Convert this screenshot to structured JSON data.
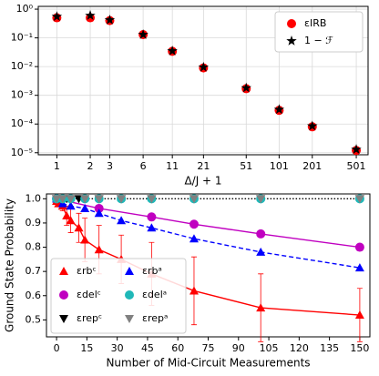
{
  "chart_data": [
    {
      "type": "scatter",
      "xlabel": "Δ/J + 1",
      "xlog": true,
      "ylog": true,
      "grid": true,
      "legend": "upper right",
      "x": [
        1,
        2,
        3,
        6,
        11,
        21,
        51,
        101,
        201,
        501
      ],
      "xlim": [
        0.68,
        640
      ],
      "xticks": [
        1,
        2,
        3,
        6,
        11,
        21,
        51,
        101,
        201,
        501
      ],
      "ylim": [
        8.5e-06,
        1.25
      ],
      "yticks": [
        {
          "value": 1e-05,
          "label": "10⁻⁵"
        },
        {
          "value": 0.0001,
          "label": "10⁻⁴"
        },
        {
          "value": 0.001,
          "label": "10⁻³"
        },
        {
          "value": 0.01,
          "label": "10⁻²"
        },
        {
          "value": 0.1,
          "label": "10⁻¹"
        },
        {
          "value": 1,
          "label": "10⁰"
        }
      ],
      "series": [
        {
          "name": "εIRB",
          "color": "#ff0000",
          "marker": "circle",
          "values": [
            0.5,
            0.5,
            0.4,
            0.13,
            0.034,
            0.009,
            0.0017,
            0.0003,
            8e-05,
            1.2e-05
          ]
        },
        {
          "name": "1 − ℱ",
          "color": "#000000",
          "marker": "star",
          "values": [
            0.55,
            0.6,
            0.42,
            0.13,
            0.035,
            0.0095,
            0.0018,
            0.00032,
            8.5e-05,
            1.3e-05
          ]
        }
      ]
    },
    {
      "type": "scatter",
      "xlabel": "Number of Mid-Circuit Measurements",
      "ylabel": "Ground State Probability",
      "grid": false,
      "legend": "lower left",
      "xlim": [
        -5,
        155
      ],
      "xticks": [
        0,
        15,
        30,
        45,
        60,
        75,
        90,
        105,
        120,
        135,
        150
      ],
      "ylim": [
        0.43,
        1.02
      ],
      "yticks": [
        0.5,
        0.6,
        0.7,
        0.8,
        0.9,
        {
          "value": 1,
          "label": "1.0"
        }
      ],
      "series": [
        {
          "name": "εrbᶜ",
          "color": "#ff0000",
          "marker": "triangle-up",
          "line": "solid",
          "x": [
            0,
            1,
            3,
            5,
            7,
            11,
            14,
            21,
            32,
            47,
            68,
            101,
            150
          ],
          "values": [
            0.99,
            0.98,
            0.97,
            0.93,
            0.91,
            0.88,
            0.83,
            0.79,
            0.75,
            0.69,
            0.62,
            0.55,
            0.52
          ],
          "errors": [
            0.005,
            0.01,
            0.02,
            0.04,
            0.05,
            0.06,
            0.09,
            0.1,
            0.1,
            0.13,
            0.14,
            0.14,
            0.11
          ]
        },
        {
          "name": "εdelᶜ",
          "color": "#c000c0",
          "marker": "circle",
          "line": "solid",
          "x": [
            0,
            21,
            47,
            68,
            101,
            150
          ],
          "values": [
            1,
            0.96,
            0.925,
            0.895,
            0.855,
            0.8
          ]
        },
        {
          "name": "εrepᶜ",
          "color": "#000000",
          "marker": "triangle-down",
          "line": "dotted",
          "x": [
            0,
            1,
            3,
            5,
            7,
            11,
            14,
            21,
            32,
            47,
            68,
            101,
            150
          ],
          "values": [
            1,
            1,
            1,
            1,
            1,
            1,
            1,
            1,
            1,
            1,
            1,
            1,
            1
          ]
        },
        {
          "name": "εrbᵃ",
          "color": "#0000ff",
          "marker": "triangle-up",
          "line": "dashed",
          "x": [
            0,
            3,
            7,
            14,
            21,
            32,
            47,
            68,
            101,
            150
          ],
          "values": [
            1,
            0.98,
            0.97,
            0.96,
            0.94,
            0.91,
            0.88,
            0.835,
            0.78,
            0.715
          ]
        },
        {
          "name": "εdelᵃ",
          "color": "#20b8b8",
          "marker": "circle",
          "x": [
            0,
            3,
            7,
            14,
            21,
            32,
            47,
            68,
            101,
            150
          ],
          "values": [
            1,
            1,
            1,
            1,
            1,
            1,
            1,
            1,
            1,
            1
          ]
        },
        {
          "name": "εrepᵃ",
          "color": "#808080",
          "marker": "triangle-down",
          "x": [
            0,
            3,
            7,
            14,
            21,
            32,
            47,
            68,
            101,
            150
          ],
          "values": [
            1,
            1,
            1,
            1,
            1,
            1,
            1,
            1,
            1,
            1
          ]
        }
      ]
    }
  ]
}
